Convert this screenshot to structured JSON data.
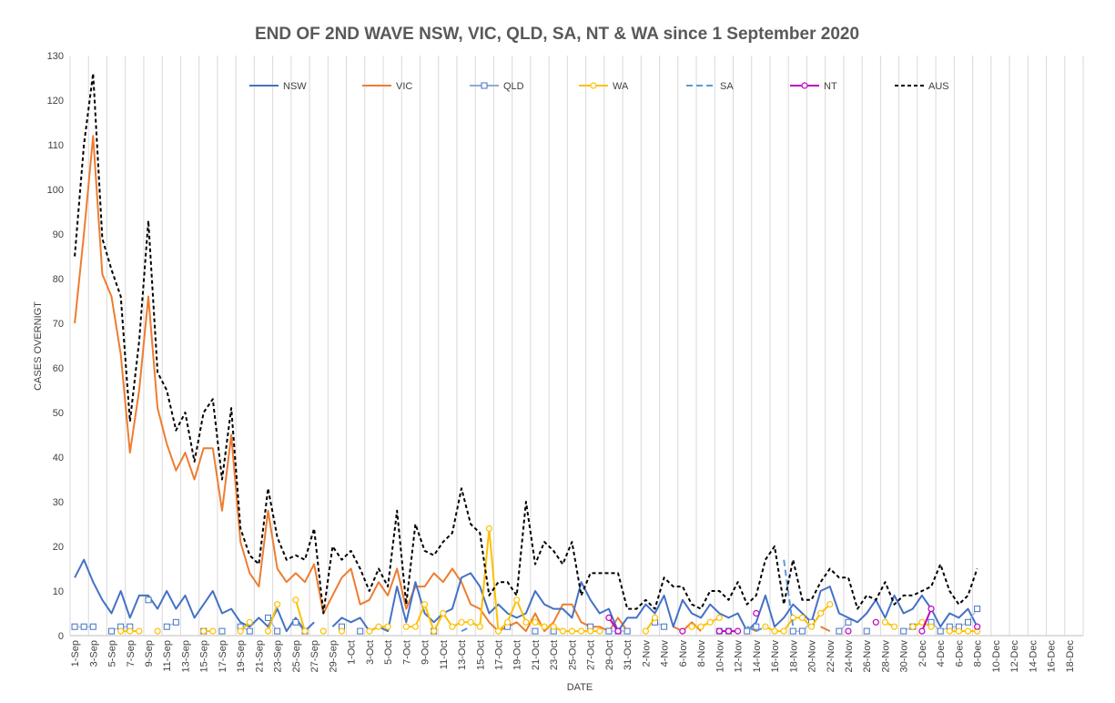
{
  "chart_data": {
    "type": "line",
    "title": "END OF 2ND WAVE NSW, VIC, QLD, SA, NT & WA since 1 September 2020",
    "xlabel": "DATE",
    "ylabel": "CASES OVERNIGT",
    "ylim": [
      0,
      130
    ],
    "yticks": [
      0,
      10,
      20,
      30,
      40,
      50,
      60,
      70,
      80,
      90,
      100,
      110,
      120,
      130
    ],
    "grid": "vertical",
    "legend_position": "top",
    "x_tick_labels": [
      "1-Sep",
      "3-Sep",
      "5-Sep",
      "7-Sep",
      "9-Sep",
      "11-Sep",
      "13-Sep",
      "15-Sep",
      "17-Sep",
      "19-Sep",
      "21-Sep",
      "23-Sep",
      "25-Sep",
      "27-Sep",
      "29-Sep",
      "1-Oct",
      "3-Oct",
      "5-Oct",
      "7-Oct",
      "9-Oct",
      "11-Oct",
      "13-Oct",
      "15-Oct",
      "17-Oct",
      "19-Oct",
      "21-Oct",
      "23-Oct",
      "25-Oct",
      "27-Oct",
      "29-Oct",
      "31-Oct",
      "2-Nov",
      "4-Nov",
      "6-Nov",
      "8-Nov",
      "10-Nov",
      "12-Nov",
      "14-Nov",
      "16-Nov",
      "18-Nov",
      "20-Nov",
      "22-Nov",
      "24-Nov",
      "26-Nov",
      "28-Nov",
      "30-Nov",
      "2-Dec",
      "4-Dec",
      "6-Dec",
      "8-Dec",
      "10-Dec",
      "12-Dec",
      "14-Dec",
      "16-Dec",
      "18-Dec"
    ],
    "series": [
      {
        "name": "NSW",
        "color": "#4472C4",
        "style": "solid",
        "marker": "none",
        "values": [
          13,
          17,
          12,
          8,
          5,
          10,
          4,
          9,
          9,
          6,
          10,
          6,
          9,
          4,
          7,
          10,
          5,
          6,
          3,
          2,
          4,
          2,
          6,
          1,
          4,
          1,
          3,
          null,
          2,
          4,
          3,
          4,
          1,
          2,
          1,
          11,
          3,
          12,
          5,
          3,
          5,
          6,
          13,
          14,
          11,
          5,
          7,
          5,
          4,
          5,
          10,
          7,
          6,
          6,
          4,
          12,
          8,
          5,
          6,
          1,
          4,
          4,
          7,
          5,
          9,
          2,
          8,
          5,
          4,
          7,
          5,
          4,
          5,
          1,
          3,
          9,
          2,
          4,
          7,
          5,
          3,
          10,
          11,
          5,
          4,
          3,
          5,
          8,
          4,
          9,
          5,
          6,
          9,
          6,
          2,
          5,
          4,
          6,
          2
        ]
      },
      {
        "name": "VIC",
        "color": "#ED7D31",
        "style": "solid",
        "marker": "none",
        "values": [
          70,
          90,
          112,
          81,
          76,
          63,
          41,
          55,
          76,
          51,
          43,
          37,
          41,
          35,
          42,
          42,
          28,
          45,
          21,
          14,
          11,
          28,
          15,
          12,
          14,
          12,
          16,
          5,
          9,
          13,
          15,
          7,
          8,
          12,
          9,
          15,
          6,
          11,
          11,
          14,
          12,
          15,
          12,
          7,
          6,
          3,
          1,
          2,
          3,
          1,
          5,
          1,
          3,
          7,
          7,
          3,
          2,
          2,
          1,
          4,
          1,
          null,
          1,
          null,
          null,
          2,
          1,
          3,
          1,
          null,
          null,
          null,
          null,
          2,
          1,
          null,
          null,
          null,
          null,
          null,
          null,
          2,
          1,
          null,
          null,
          null,
          null,
          null,
          null,
          null,
          null,
          null,
          null,
          null,
          null,
          null,
          null,
          null,
          null
        ]
      },
      {
        "name": "QLD",
        "color": "#4472C4",
        "style": "square-markers",
        "marker": "square",
        "values": [
          2,
          2,
          2,
          null,
          1,
          2,
          2,
          null,
          8,
          null,
          2,
          3,
          null,
          null,
          1,
          null,
          1,
          null,
          2,
          1,
          null,
          4,
          1,
          null,
          3,
          1,
          null,
          null,
          null,
          2,
          null,
          1,
          null,
          null,
          null,
          null,
          null,
          null,
          null,
          1,
          null,
          null,
          null,
          null,
          null,
          null,
          null,
          2,
          null,
          null,
          1,
          null,
          1,
          null,
          null,
          null,
          2,
          null,
          1,
          1,
          1,
          null,
          null,
          3,
          2,
          null,
          null,
          null,
          null,
          null,
          1,
          1,
          null,
          1,
          2,
          null,
          null,
          null,
          1,
          1,
          3,
          null,
          null,
          1,
          3,
          null,
          1,
          null,
          null,
          null,
          1,
          2,
          null,
          3,
          1,
          2,
          2,
          3,
          6
        ]
      },
      {
        "name": "WA",
        "color": "#FFC000",
        "style": "solid-circle-markers",
        "marker": "circle",
        "values": [
          null,
          null,
          null,
          null,
          null,
          1,
          1,
          1,
          null,
          1,
          null,
          null,
          null,
          null,
          1,
          1,
          null,
          null,
          1,
          3,
          null,
          1,
          7,
          null,
          8,
          1,
          null,
          1,
          null,
          1,
          null,
          null,
          1,
          2,
          2,
          null,
          2,
          2,
          7,
          1,
          5,
          2,
          3,
          3,
          2,
          24,
          1,
          3,
          8,
          3,
          3,
          2,
          2,
          1,
          1,
          1,
          1,
          1,
          null,
          null,
          null,
          null,
          1,
          4,
          null,
          null,
          null,
          2,
          2,
          3,
          4,
          null,
          null,
          null,
          null,
          2,
          1,
          1,
          4,
          4,
          2,
          5,
          7,
          null,
          null,
          null,
          null,
          null,
          3,
          2,
          null,
          2,
          3,
          2,
          null,
          1,
          1,
          1,
          1
        ]
      },
      {
        "name": "SA",
        "color": "#5B9BD5",
        "style": "dashed",
        "marker": "none",
        "values": [
          null,
          null,
          null,
          null,
          null,
          null,
          null,
          null,
          null,
          null,
          null,
          null,
          null,
          null,
          null,
          null,
          null,
          null,
          null,
          null,
          null,
          null,
          null,
          null,
          null,
          null,
          null,
          null,
          null,
          null,
          null,
          null,
          null,
          null,
          null,
          null,
          null,
          null,
          null,
          null,
          null,
          null,
          1,
          2,
          null,
          null,
          null,
          null,
          null,
          null,
          null,
          null,
          null,
          null,
          null,
          null,
          null,
          null,
          null,
          null,
          null,
          null,
          null,
          null,
          null,
          null,
          null,
          null,
          null,
          null,
          null,
          null,
          null,
          2,
          1,
          2,
          null,
          17,
          2,
          null,
          null,
          null,
          null,
          null,
          null,
          null,
          null,
          null,
          null,
          null,
          null,
          null,
          null,
          null,
          null,
          null,
          null,
          null,
          null
        ]
      },
      {
        "name": "NT",
        "color": "#C000C0",
        "style": "solid-circle-markers",
        "marker": "circle",
        "values": [
          null,
          null,
          null,
          null,
          null,
          null,
          null,
          null,
          null,
          null,
          null,
          null,
          null,
          null,
          null,
          null,
          null,
          null,
          null,
          null,
          null,
          null,
          null,
          null,
          null,
          null,
          null,
          null,
          null,
          null,
          null,
          null,
          null,
          null,
          null,
          null,
          null,
          null,
          null,
          null,
          null,
          null,
          null,
          null,
          null,
          null,
          null,
          null,
          null,
          null,
          null,
          null,
          null,
          null,
          null,
          null,
          null,
          null,
          4,
          1,
          null,
          null,
          null,
          null,
          null,
          null,
          1,
          null,
          null,
          null,
          1,
          1,
          1,
          null,
          5,
          null,
          null,
          null,
          null,
          null,
          null,
          null,
          null,
          null,
          1,
          null,
          null,
          3,
          null,
          null,
          null,
          null,
          1,
          6,
          null,
          null,
          null,
          null,
          2
        ]
      },
      {
        "name": "AUS",
        "color": "#000000",
        "style": "dashed",
        "marker": "none",
        "values": [
          85,
          110,
          126,
          89,
          82,
          76,
          48,
          66,
          93,
          59,
          55,
          46,
          50,
          39,
          50,
          53,
          35,
          51,
          24,
          18,
          16,
          33,
          22,
          17,
          18,
          17,
          24,
          5,
          20,
          17,
          19,
          15,
          10,
          15,
          11,
          28,
          7,
          25,
          19,
          18,
          21,
          23,
          33,
          25,
          23,
          9,
          12,
          12,
          9,
          30,
          16,
          21,
          19,
          16,
          21,
          9,
          14,
          14,
          14,
          14,
          6,
          6,
          8,
          6,
          13,
          11,
          11,
          7,
          6,
          10,
          10,
          8,
          12,
          7,
          9,
          17,
          20,
          7,
          17,
          8,
          8,
          12,
          15,
          13,
          13,
          6,
          9,
          8,
          12,
          7,
          9,
          9,
          10,
          11,
          16,
          10,
          7,
          9,
          15
        ]
      }
    ]
  }
}
